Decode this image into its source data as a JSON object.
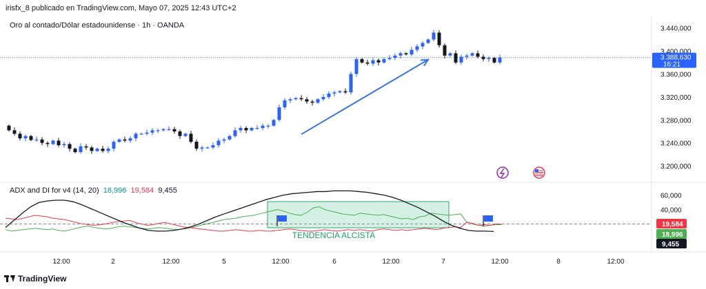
{
  "header": {
    "published": "irisfx_8 publicado en TradingView.com, Mayo 07, 2025 12:43 UTC+2",
    "symbol": "Oro al contado/Dólar estadounidense · 1h · OANDA"
  },
  "indicator": {
    "name": "ADX and DI for v4 (14, 20)",
    "di_plus": "18,996",
    "di_minus": "19,584",
    "adx": "9,455"
  },
  "annotation": {
    "text": "TENDENCIA ALCISTA"
  },
  "footer": {
    "brand": "TradingView"
  },
  "colors": {
    "bull": "#2962ff",
    "bear": "#131722",
    "di_plus": "#4caf50",
    "di_minus": "#f23645",
    "adx": "#131722",
    "zone_fill": "#b2e5cf",
    "zone_stroke": "#33a36b",
    "arrow": "#3b73e6",
    "price_label": "#2962ff"
  },
  "chart_data": [
    {
      "type": "candlestick",
      "title": "Oro al contado/Dólar estadounidense · 1h · OANDA",
      "x_ticks": [
        "12:00",
        "2",
        "12:00",
        "5",
        "12:00",
        "6",
        "12:00",
        "7",
        "12:00",
        "8",
        "12:00"
      ],
      "y_ticks": [
        "3.440,000",
        "3.400,000",
        "3.360,000",
        "3.320,000",
        "3.280,000",
        "3.240,000",
        "3.200,000"
      ],
      "ylim": [
        3175,
        3460
      ],
      "current_price_label": "3.388,630",
      "countdown_label": "16:21",
      "current_price": 3388.63,
      "close": [
        3262,
        3256,
        3248,
        3252,
        3245,
        3246,
        3240,
        3238,
        3244,
        3236,
        3238,
        3230,
        3224,
        3234,
        3232,
        3226,
        3230,
        3226,
        3230,
        3242,
        3246,
        3244,
        3248,
        3256,
        3256,
        3258,
        3262,
        3262,
        3264,
        3264,
        3260,
        3252,
        3256,
        3242,
        3230,
        3232,
        3232,
        3236,
        3244,
        3246,
        3252,
        3262,
        3266,
        3262,
        3266,
        3266,
        3270,
        3270,
        3280,
        3302,
        3314,
        3316,
        3318,
        3316,
        3312,
        3310,
        3316,
        3320,
        3326,
        3328,
        3330,
        3328,
        3360,
        3386,
        3380,
        3378,
        3384,
        3380,
        3386,
        3388,
        3392,
        3396,
        3394,
        3402,
        3408,
        3414,
        3420,
        3432,
        3410,
        3392,
        3396,
        3380,
        3390,
        3392,
        3396,
        3390,
        3386,
        3388,
        3380,
        3388.63
      ],
      "direction": [
        "o",
        "d",
        "d",
        "u",
        "d",
        "u",
        "d",
        "d",
        "u",
        "d",
        "u",
        "d",
        "d",
        "u",
        "d",
        "d",
        "u",
        "d",
        "u",
        "u",
        "u",
        "d",
        "u",
        "u",
        "u",
        "u",
        "u",
        "d",
        "u",
        "u",
        "d",
        "d",
        "u",
        "d",
        "d",
        "u",
        "d",
        "u",
        "u",
        "u",
        "u",
        "u",
        "u",
        "d",
        "u",
        "d",
        "u",
        "d",
        "u",
        "u",
        "u",
        "u",
        "u",
        "d",
        "d",
        "d",
        "u",
        "u",
        "u",
        "u",
        "u",
        "d",
        "u",
        "u",
        "d",
        "d",
        "u",
        "d",
        "u",
        "u",
        "u",
        "u",
        "d",
        "u",
        "u",
        "u",
        "u",
        "u",
        "d",
        "d",
        "u",
        "d",
        "u",
        "u",
        "u",
        "d",
        "d",
        "u",
        "d",
        "u"
      ],
      "arrow": {
        "from": [
          53,
          3255
        ],
        "to": [
          76,
          3385
        ]
      }
    },
    {
      "type": "line",
      "title": "ADX and DI for v4 (14, 20)",
      "y_ticks": [
        "60,000",
        "40,000"
      ],
      "ylim": [
        -15,
        75
      ],
      "threshold": 20,
      "series": [
        {
          "name": "DI+",
          "value_label": "18,996",
          "values": [
            12,
            10,
            11,
            12,
            13,
            14,
            13,
            12,
            13,
            11,
            10,
            12,
            14,
            16,
            17,
            15,
            14,
            13,
            14,
            16,
            17,
            16,
            15,
            14,
            13,
            14,
            15,
            14,
            13,
            12,
            13,
            14,
            16,
            18,
            20,
            22,
            24,
            26,
            27,
            28,
            30,
            31,
            32,
            34,
            36,
            38,
            40,
            38,
            35,
            33,
            32,
            36,
            42,
            44,
            40,
            38,
            36,
            34,
            33,
            32,
            35,
            34,
            33,
            32,
            33,
            31,
            29,
            27,
            28,
            26,
            30,
            31,
            35,
            34,
            33,
            32,
            33,
            34,
            23,
            20,
            18,
            17,
            18,
            19,
            19
          ]
        },
        {
          "name": "DI-",
          "value_label": "19,584",
          "values": [
            28,
            27,
            26,
            28,
            30,
            32,
            31,
            30,
            28,
            27,
            26,
            24,
            22,
            20,
            19,
            18,
            19,
            20,
            22,
            23,
            24,
            25,
            22,
            20,
            18,
            19,
            21,
            22,
            20,
            18,
            16,
            15,
            14,
            13,
            12,
            11,
            10,
            10,
            11,
            12,
            11,
            10,
            10,
            11,
            10,
            10,
            11,
            12,
            13,
            12,
            11,
            10,
            10,
            11,
            12,
            11,
            10,
            11,
            12,
            11,
            12,
            11,
            10,
            12,
            13,
            12,
            11,
            12,
            11,
            12,
            13,
            14,
            13,
            12,
            14,
            15,
            16,
            15,
            22,
            21,
            18,
            19,
            18,
            20,
            19.5
          ]
        },
        {
          "name": "ADX",
          "value_label": "9,455",
          "values": [
            15,
            25,
            35,
            44,
            50,
            52,
            53,
            53,
            51,
            47,
            42,
            37,
            32,
            27,
            22,
            18,
            14,
            11,
            10,
            10,
            11,
            13,
            16,
            20,
            25,
            30,
            34,
            38,
            42,
            46,
            50,
            54,
            57,
            60,
            62,
            63,
            64,
            65,
            65,
            66,
            66,
            66,
            65,
            64,
            62,
            60,
            57,
            53,
            48,
            43,
            37,
            31,
            24,
            18,
            14,
            11,
            10,
            10,
            9.5
          ]
        }
      ]
    }
  ]
}
